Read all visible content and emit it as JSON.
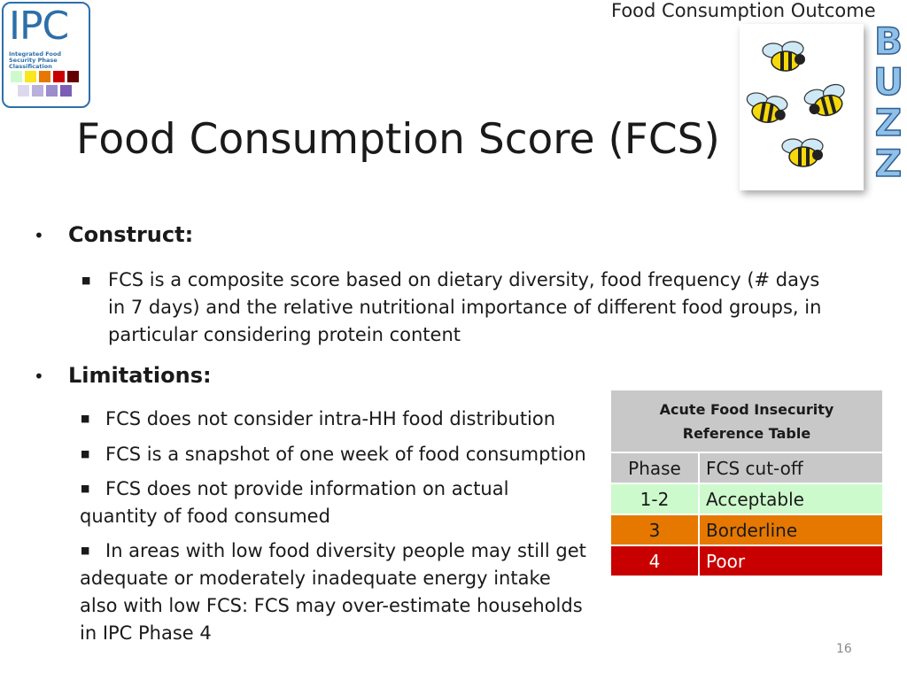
{
  "header_label": "Food Consumption Outcome",
  "logo": {
    "letters": "IPC",
    "subtitle": "Integrated Food Security Phase Classification",
    "swatch_colors_row1": [
      "#cdfacd",
      "#fae61e",
      "#e67800",
      "#c80000",
      "#640000"
    ],
    "swatch_colors_row2": [
      "#ddd8ee",
      "#b9b0dc",
      "#9b8ccc",
      "#7a5fb4"
    ]
  },
  "title": "Food Consumption Score (FCS)",
  "buzz_letters": [
    "B",
    "U",
    "Z",
    "Z"
  ],
  "construct": {
    "heading": "Construct:",
    "items": [
      "FCS is a composite score based on dietary diversity, food frequency (# days in 7 days) and the relative nutritional importance of different food groups, in particular considering protein content"
    ]
  },
  "limitations": {
    "heading": "Limitations:",
    "items": [
      "FCS does not consider intra-HH food distribution",
      "FCS is a snapshot of one week of food consumption",
      "FCS does not provide information on actual quantity of food consumed",
      "In areas with low food diversity people may still  get adequate or moderately inadequate energy intake also with low FCS: FCS may over-estimate households in IPC Phase 4"
    ]
  },
  "reference_table": {
    "title_line1": "Acute Food Insecurity",
    "title_line2": "Reference Table",
    "col_phase": "Phase",
    "col_cutoff": "FCS cut-off",
    "rows": [
      {
        "phase": "1-2",
        "cutoff": "Acceptable",
        "bg": "#cdfacd",
        "fg": "#1a1a1a"
      },
      {
        "phase": "3",
        "cutoff": "Borderline",
        "bg": "#e67800",
        "fg": "#1a1a1a"
      },
      {
        "phase": "4",
        "cutoff": "Poor",
        "bg": "#c80000",
        "fg": "#ffffff"
      }
    ],
    "header_bg": "#c8c8c8"
  },
  "page_number": "16"
}
